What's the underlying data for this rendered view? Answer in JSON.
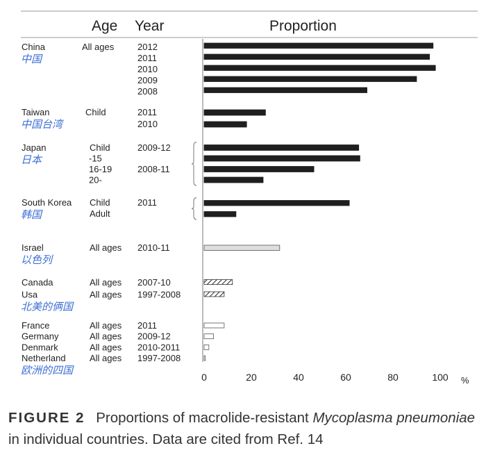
{
  "chart_data": {
    "type": "bar",
    "orientation": "horizontal",
    "headers": {
      "age": "Age",
      "year": "Year",
      "proportion": "Proportion"
    },
    "xlim": [
      0,
      100
    ],
    "xticks": [
      0,
      20,
      40,
      60,
      80,
      100
    ],
    "x_unit": "%",
    "groups": [
      {
        "country": "China",
        "country_zh": "中国",
        "extra_countries": [],
        "rows": [
          {
            "age": "All ages",
            "year": "2012",
            "value": 97,
            "style": "solid"
          },
          {
            "age": "",
            "year": "2011",
            "value": 95.5,
            "style": "solid"
          },
          {
            "age": "",
            "year": "2010",
            "value": 98,
            "style": "solid"
          },
          {
            "age": "",
            "year": "2009",
            "value": 90,
            "style": "solid"
          },
          {
            "age": "",
            "year": "2008",
            "value": 69,
            "style": "solid"
          }
        ]
      },
      {
        "country": "Taiwan",
        "country_zh": "中国台湾",
        "extra_countries": [],
        "rows": [
          {
            "age": "Child",
            "year": "2011",
            "value": 26,
            "style": "solid"
          },
          {
            "age": "",
            "year": "2010",
            "value": 18,
            "style": "solid"
          }
        ]
      },
      {
        "country": "Japan",
        "country_zh": "日本",
        "extra_countries": [],
        "rows": [
          {
            "age": "Child",
            "year": "2009-12",
            "value": 65.5,
            "style": "solid"
          },
          {
            "age": "-15",
            "year": "",
            "value": 66,
            "style": "solid"
          },
          {
            "age": "16-19",
            "year": "2008-11",
            "value": 46.5,
            "style": "solid"
          },
          {
            "age": "20-",
            "year": "",
            "value": 25,
            "style": "solid"
          }
        ]
      },
      {
        "country": "South Korea",
        "country_zh": "韩国",
        "extra_countries": [],
        "rows": [
          {
            "age": "Child",
            "year": "2011",
            "value": 61.5,
            "style": "solid"
          },
          {
            "age": "Adult",
            "year": "",
            "value": 13.5,
            "style": "solid"
          }
        ]
      },
      {
        "country": "Israel",
        "country_zh": "以色列",
        "extra_countries": [],
        "rows": [
          {
            "age": "All ages",
            "year": "2010-11",
            "value": 32,
            "style": "light"
          }
        ]
      },
      {
        "country": "Canada",
        "country_zh": "北美的俩国",
        "extra_countries": [
          "Usa"
        ],
        "rows": [
          {
            "age": "All ages",
            "year": "2007-10",
            "value": 12,
            "style": "hatched"
          },
          {
            "age": "All ages",
            "year": "1997-2008",
            "value": 8.5,
            "style": "hatched"
          }
        ]
      },
      {
        "country": "France",
        "country_zh": "欧洲的四国",
        "extra_countries": [
          "Germany",
          "Denmark",
          "Netherland"
        ],
        "rows": [
          {
            "age": "All ages",
            "year": "2011",
            "value": 8.5,
            "style": "outline"
          },
          {
            "age": "All ages",
            "year": "2009-12",
            "value": 4,
            "style": "outline"
          },
          {
            "age": "All ages",
            "year": "2010-2011",
            "value": 2,
            "style": "outline"
          },
          {
            "age": "All ages",
            "year": "1997-2008",
            "value": 0.5,
            "style": "outline"
          }
        ]
      }
    ],
    "caption": {
      "label": "FIGURE 2",
      "text_before": "Proportions of macrolide-resistant",
      "italic": "Mycoplasma pneumoniae",
      "text_after": "in individual countries. Data are cited from Ref. 14"
    }
  }
}
